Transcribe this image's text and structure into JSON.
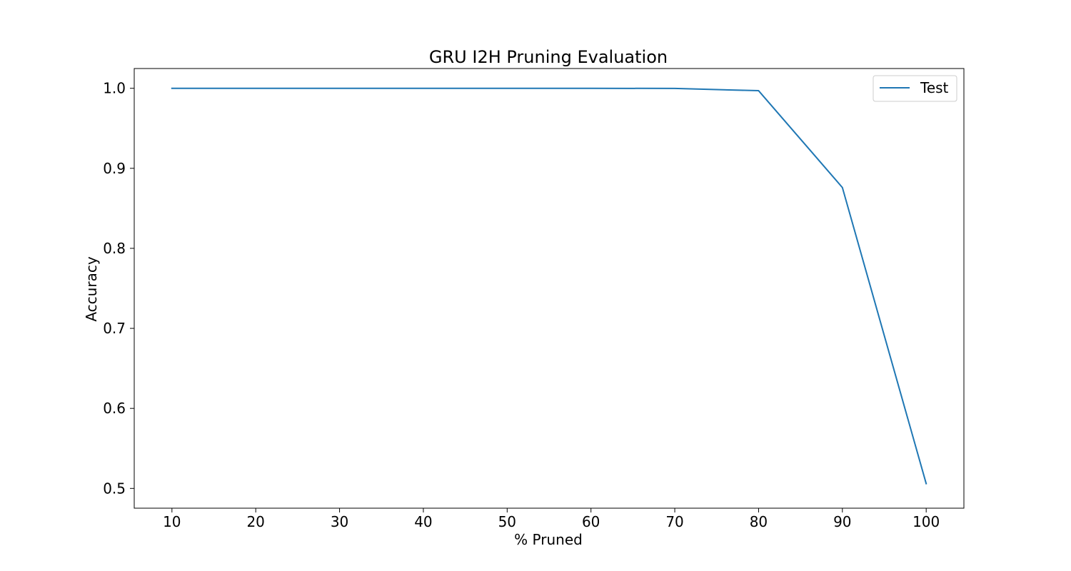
{
  "chart_data": {
    "type": "line",
    "title": "GRU I2H Pruning Evaluation",
    "xlabel": "% Pruned",
    "ylabel": "Accuracy",
    "x": [
      10,
      20,
      30,
      40,
      50,
      60,
      70,
      80,
      90,
      100
    ],
    "series": [
      {
        "name": "Test",
        "color": "#1f77b4",
        "values": [
          1.0,
          1.0,
          1.0,
          1.0,
          1.0,
          1.0,
          0.9998,
          0.997,
          0.876,
          0.506
        ]
      }
    ],
    "xticks": [
      10,
      20,
      30,
      40,
      50,
      60,
      70,
      80,
      90,
      100
    ],
    "yticks": [
      0.5,
      0.6,
      0.7,
      0.8,
      0.9,
      1.0
    ],
    "xtick_labels": [
      "10",
      "20",
      "30",
      "40",
      "50",
      "60",
      "70",
      "80",
      "90",
      "100"
    ],
    "ytick_labels": [
      "0.5",
      "0.6",
      "0.7",
      "0.8",
      "0.9",
      "1.0"
    ],
    "xlim": [
      5.5,
      104.5
    ],
    "ylim": [
      0.4753,
      1.0247
    ],
    "grid": false,
    "legend_position": "top-right"
  }
}
